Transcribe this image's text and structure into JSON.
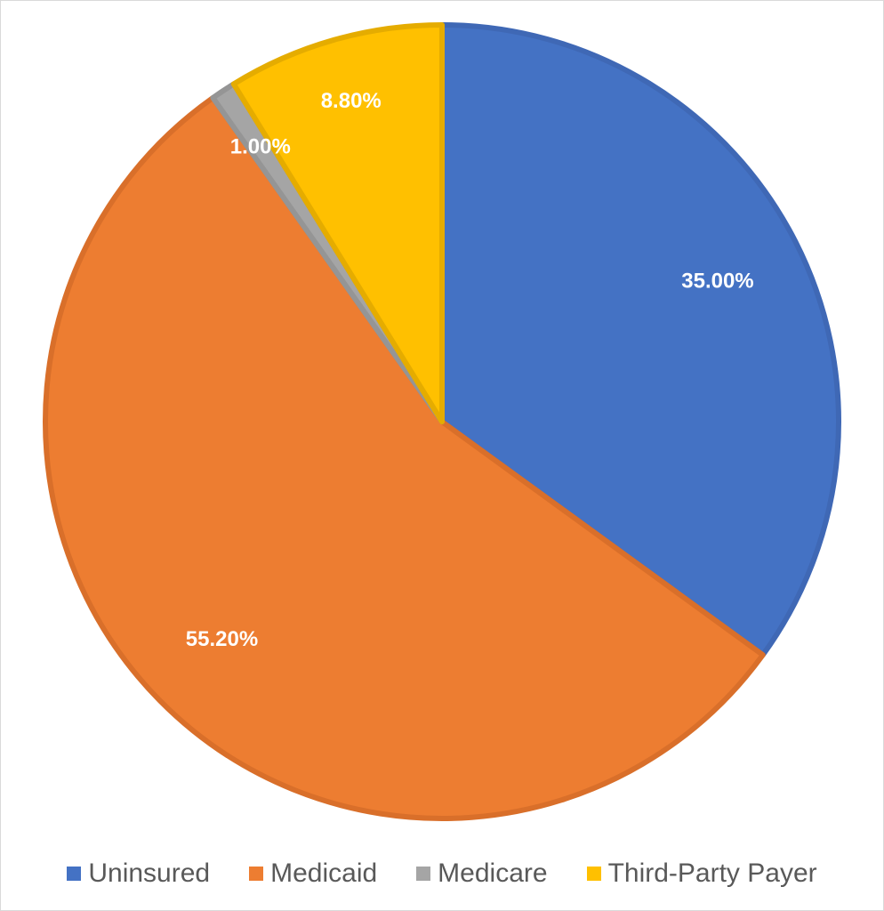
{
  "chart_data": {
    "type": "pie",
    "title": "",
    "start_angle_deg": 0,
    "direction": "clockwise",
    "legend_position": "bottom",
    "slices": [
      {
        "name": "Uninsured",
        "value": 35.0,
        "label": "35.00%",
        "color": "#4472C4",
        "edge": "#3F68B5"
      },
      {
        "name": "Medicaid",
        "value": 55.2,
        "label": "55.20%",
        "color": "#ED7D31",
        "edge": "#D96F2A"
      },
      {
        "name": "Medicare",
        "value": 1.0,
        "label": "1.00%",
        "color": "#A5A5A5",
        "edge": "#959595"
      },
      {
        "name": "Third-Party Payer",
        "value": 8.8,
        "label": "8.80%",
        "color": "#FFC000",
        "edge": "#E5AC00"
      }
    ]
  }
}
